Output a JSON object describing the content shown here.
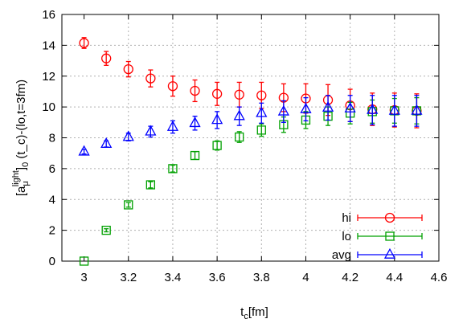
{
  "chart_data": {
    "type": "scatter",
    "xlabel": "t_c[fm]",
    "ylabel": "[a_μ^light]_0 (t_c)-(lo,t=3fm)",
    "xlim": [
      2.9,
      4.6
    ],
    "ylim": [
      0,
      16
    ],
    "xticks": [
      "3",
      "3.2",
      "3.4",
      "3.6",
      "3.8",
      "4",
      "4.2",
      "4.4",
      "4.6"
    ],
    "yticks": [
      "0",
      "2",
      "4",
      "6",
      "8",
      "10",
      "12",
      "14",
      "16"
    ],
    "grid": true,
    "legend_position": "bottom-right",
    "series": [
      {
        "name": "hi",
        "color": "#ff0000",
        "marker": "circle",
        "x": [
          3.0,
          3.1,
          3.2,
          3.3,
          3.4,
          3.5,
          3.6,
          3.7,
          3.8,
          3.9,
          4.0,
          4.1,
          4.2,
          4.3,
          4.4,
          4.5
        ],
        "y": [
          14.15,
          13.15,
          12.45,
          11.85,
          11.35,
          11.05,
          10.85,
          10.8,
          10.75,
          10.6,
          10.55,
          10.45,
          10.1,
          9.85,
          9.8,
          9.75
        ],
        "err": [
          0.35,
          0.45,
          0.5,
          0.55,
          0.65,
          0.7,
          0.75,
          0.8,
          0.85,
          0.9,
          0.95,
          1.0,
          1.05,
          1.05,
          1.1,
          1.1
        ]
      },
      {
        "name": "lo",
        "color": "#00a000",
        "marker": "square",
        "x": [
          3.0,
          3.1,
          3.2,
          3.3,
          3.4,
          3.5,
          3.6,
          3.7,
          3.8,
          3.9,
          4.0,
          4.1,
          4.2,
          4.3,
          4.4,
          4.5
        ],
        "y": [
          0.0,
          2.0,
          3.65,
          4.95,
          6.0,
          6.85,
          7.5,
          8.05,
          8.5,
          8.85,
          9.15,
          9.4,
          9.6,
          9.7,
          9.75,
          9.75
        ],
        "err": [
          0.0,
          0.1,
          0.15,
          0.2,
          0.22,
          0.25,
          0.3,
          0.35,
          0.4,
          0.5,
          0.55,
          0.6,
          0.7,
          0.75,
          0.8,
          0.85
        ]
      },
      {
        "name": "avg",
        "color": "#0000ff",
        "marker": "triangle",
        "x": [
          3.0,
          3.1,
          3.2,
          3.3,
          3.4,
          3.5,
          3.6,
          3.7,
          3.8,
          3.9,
          4.0,
          4.1,
          4.2,
          4.3,
          4.4,
          4.5
        ],
        "y": [
          7.1,
          7.6,
          8.05,
          8.4,
          8.7,
          8.95,
          9.15,
          9.4,
          9.6,
          9.7,
          9.85,
          9.95,
          9.9,
          9.8,
          9.75,
          9.75
        ],
        "err": [
          0.15,
          0.2,
          0.25,
          0.35,
          0.4,
          0.45,
          0.55,
          0.6,
          0.65,
          0.7,
          0.75,
          0.8,
          0.85,
          0.95,
          1.0,
          1.0
        ]
      }
    ]
  }
}
